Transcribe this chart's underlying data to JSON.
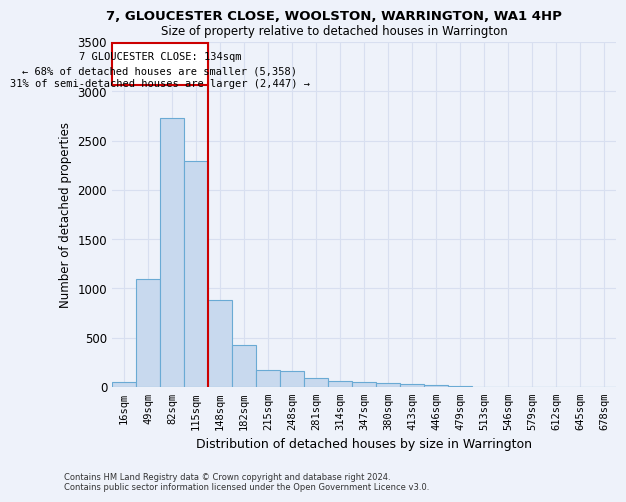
{
  "title": "7, GLOUCESTER CLOSE, WOOLSTON, WARRINGTON, WA1 4HP",
  "subtitle": "Size of property relative to detached houses in Warrington",
  "xlabel": "Distribution of detached houses by size in Warrington",
  "ylabel": "Number of detached properties",
  "bar_color": "#c8d9ee",
  "bar_edge_color": "#6aaad4",
  "background_color": "#eef2fa",
  "grid_color": "#d8dff0",
  "categories": [
    "16sqm",
    "49sqm",
    "82sqm",
    "115sqm",
    "148sqm",
    "182sqm",
    "215sqm",
    "248sqm",
    "281sqm",
    "314sqm",
    "347sqm",
    "380sqm",
    "413sqm",
    "446sqm",
    "479sqm",
    "513sqm",
    "546sqm",
    "579sqm",
    "612sqm",
    "645sqm",
    "678sqm"
  ],
  "values": [
    50,
    1100,
    2730,
    2290,
    880,
    430,
    175,
    160,
    95,
    65,
    50,
    45,
    30,
    20,
    10,
    5,
    3,
    2,
    1,
    0,
    0
  ],
  "ylim": [
    0,
    3500
  ],
  "yticks": [
    0,
    500,
    1000,
    1500,
    2000,
    2500,
    3000,
    3500
  ],
  "vline_x": 3.5,
  "vline_color": "#cc0000",
  "annotation_title": "7 GLOUCESTER CLOSE: 134sqm",
  "annotation_line1": "← 68% of detached houses are smaller (5,358)",
  "annotation_line2": "31% of semi-detached houses are larger (2,447) →",
  "annotation_box_color": "#ffffff",
  "annotation_box_edge": "#cc0000",
  "footnote1": "Contains HM Land Registry data © Crown copyright and database right 2024.",
  "footnote2": "Contains public sector information licensed under the Open Government Licence v3.0."
}
